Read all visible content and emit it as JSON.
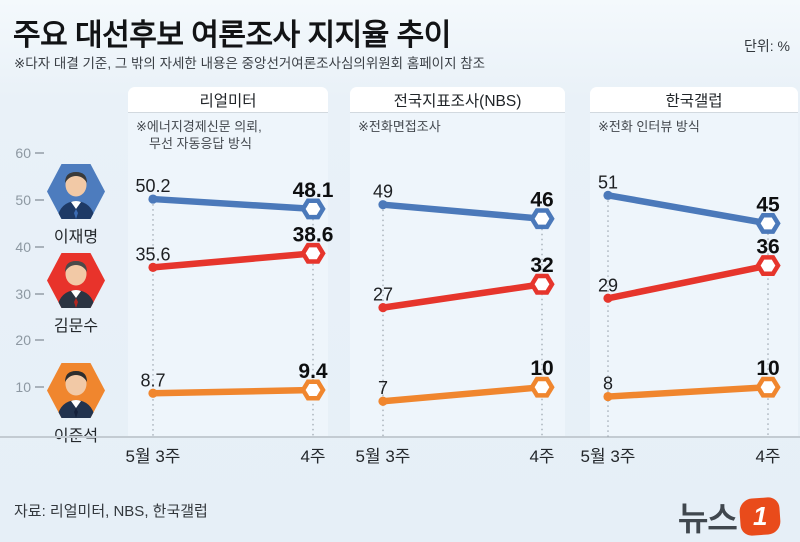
{
  "header": {
    "title": "주요 대선후보 여론조사 지지율 추이",
    "subtitle": "※다자 대결 기준, 그 밖의 자세한 내용은 중앙선거여론조사심의위원회 홈페이지 참조",
    "unit_label": "단위: %"
  },
  "y_axis": {
    "ticks": [
      "60",
      "50",
      "40",
      "30",
      "20",
      "10"
    ]
  },
  "candidates": [
    {
      "name": "이재명",
      "color": "#4d7cbe"
    },
    {
      "name": "김문수",
      "color": "#e8332b"
    },
    {
      "name": "이준석",
      "color": "#f0862e"
    }
  ],
  "chart_data": [
    {
      "type": "line",
      "panel_title": "리얼미터",
      "note_lines": [
        "※에너지경제신문 의뢰,",
        "무선 자동응답 방식"
      ],
      "x_labels": [
        "5월 3주",
        "4주"
      ],
      "ylim": [
        0,
        65
      ],
      "grid": "dotted-vertical",
      "series": [
        {
          "name": "이재명",
          "color": "#4b79ba",
          "values": [
            50.2,
            48.1
          ]
        },
        {
          "name": "김문수",
          "color": "#e6352c",
          "values": [
            35.6,
            38.6
          ]
        },
        {
          "name": "이준석",
          "color": "#f0862e",
          "values": [
            8.7,
            9.4
          ]
        }
      ]
    },
    {
      "type": "line",
      "panel_title": "전국지표조사(NBS)",
      "note_lines": [
        "※전화면접조사"
      ],
      "x_labels": [
        "5월 3주",
        "4주"
      ],
      "ylim": [
        0,
        65
      ],
      "grid": "dotted-vertical",
      "series": [
        {
          "name": "이재명",
          "color": "#4b79ba",
          "values": [
            49,
            46
          ]
        },
        {
          "name": "김문수",
          "color": "#e6352c",
          "values": [
            27,
            32
          ]
        },
        {
          "name": "이준석",
          "color": "#f0862e",
          "values": [
            7,
            10
          ]
        }
      ]
    },
    {
      "type": "line",
      "panel_title": "한국갤럽",
      "note_lines": [
        "※전화 인터뷰 방식"
      ],
      "x_labels": [
        "5월 3주",
        "4주"
      ],
      "ylim": [
        0,
        65
      ],
      "grid": "dotted-vertical",
      "series": [
        {
          "name": "이재명",
          "color": "#4b79ba",
          "values": [
            51,
            45
          ]
        },
        {
          "name": "김문수",
          "color": "#e6352c",
          "values": [
            29,
            36
          ]
        },
        {
          "name": "이준석",
          "color": "#f0862e",
          "values": [
            8,
            10
          ]
        }
      ]
    }
  ],
  "footer": {
    "source": "자료: 리얼미터, NBS, 한국갤럽",
    "logo_text": "뉴스",
    "logo_number": "1",
    "logo_color": "#e94b1b"
  }
}
